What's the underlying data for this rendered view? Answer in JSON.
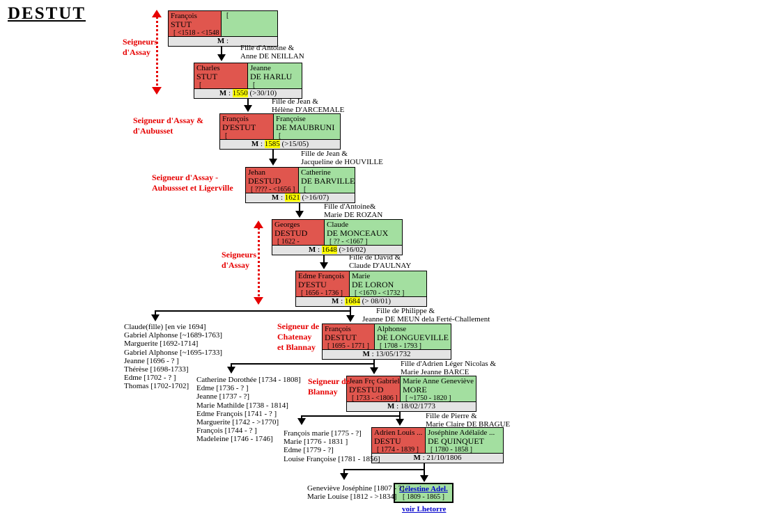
{
  "title": "DESTUT",
  "colors": {
    "husband_cell": "#e0564e",
    "wife_cell": "#a3dfa0",
    "marriage_bar": "#e4e4e4",
    "year_highlight": "#ffff00",
    "seigneury_red": "#e60000",
    "link_blue": "#0000cc",
    "connector_black": "#000000"
  },
  "couples": [
    {
      "husband": {
        "first": "François",
        "last": "STUT",
        "dates": "[ <1518 - <1548 ]"
      },
      "wife": {
        "first": "",
        "last": "",
        "dates": "["
      },
      "marriage": {
        "label": "M",
        "sep": " : ",
        "year": "",
        "rest": ""
      }
    },
    {
      "husband": {
        "first": "Charles",
        "last": "STUT",
        "dates": "["
      },
      "wife": {
        "first": "Jeanne",
        "last": "DE HARLU",
        "dates": "["
      },
      "marriage": {
        "label": "M",
        "sep": " : ",
        "year": "1550",
        "rest": " (>30/10)"
      }
    },
    {
      "husband": {
        "first": "François",
        "last": "D'ESTUT",
        "dates": "["
      },
      "wife": {
        "first": "Françoise",
        "last": "DE MAUBRUNI",
        "dates": "["
      },
      "marriage": {
        "label": "M",
        "sep": " : ",
        "year": "1585",
        "rest": " (>15/05)"
      }
    },
    {
      "husband": {
        "first": "Jehan",
        "last": "DESTUD",
        "dates": "[ ???? - <1656 ]"
      },
      "wife": {
        "first": "Catherine",
        "last": "DE BARVILLE",
        "dates": "["
      },
      "marriage": {
        "label": "M",
        "sep": " : ",
        "year": "1621",
        "rest": " (>16/07)"
      }
    },
    {
      "husband": {
        "first": "Georges",
        "last": "DESTUD",
        "dates": "[ 1622 -"
      },
      "wife": {
        "first": "Claude",
        "last": "DE MONCEAUX",
        "dates": "[ ?? - <1667 ]"
      },
      "marriage": {
        "label": "M",
        "sep": " : ",
        "year": "1648",
        "rest": " (>16/02)"
      }
    },
    {
      "husband": {
        "first": "Edme François",
        "last": "D'ESTU",
        "dates": "[ 1656 - 1736 ]"
      },
      "wife": {
        "first": "Marie",
        "last": "DE LORON",
        "dates": "[ <1670 - <1732 ]"
      },
      "marriage": {
        "label": "M",
        "sep": " : ",
        "year": "1684",
        "rest": " (> 08/01)"
      }
    },
    {
      "husband": {
        "first": "François",
        "last": "DESTUT",
        "dates": "[ 1695 - 1771 ]"
      },
      "wife": {
        "first": "Alphonse",
        "last": "DE LONGUEVILLE",
        "dates": "[ 1708 - 1793 ]"
      },
      "marriage": {
        "label": "M",
        "sep": " : ",
        "year": "",
        "rest": "13/05/1732"
      }
    },
    {
      "husband": {
        "first": "Jean Frç Gabriel",
        "last": "D'ESTUD",
        "dates": "[ 1733 - <1806 ]"
      },
      "wife": {
        "first": "Marie Anne Geneviève",
        "last": "MORE",
        "dates": "[ ~1750 - 1820 ]"
      },
      "marriage": {
        "label": "M",
        "sep": " : ",
        "year": "",
        "rest": "18/02/1773"
      }
    },
    {
      "husband": {
        "first": "Adrien Louis ...",
        "last": "DESTU",
        "dates": "[ 1774 - 1839 ]"
      },
      "wife": {
        "first": "Joséphine Adélaïde ...",
        "last": "DE QUINQUET",
        "dates": "[ 1780 - 1858 ]"
      },
      "marriage": {
        "label": "M",
        "sep": " : ",
        "year": "",
        "rest": "21/10/1806"
      }
    }
  ],
  "seigneury_labels": [
    {
      "lines": [
        "Seigneurs",
        "d'Assay"
      ]
    },
    {
      "lines": [
        "Seigneur d'Assay &",
        "d'Aubusset"
      ]
    },
    {
      "lines": [
        "Seigneur d'Assay -",
        "Aubussset et Ligerville"
      ]
    },
    {
      "lines": [
        "Seigneurs",
        "d'Assay"
      ]
    },
    {
      "lines": [
        "Seigneur de",
        "Chatenay",
        "et Blannay"
      ]
    },
    {
      "lines": [
        "Seigneur de",
        "Blannay"
      ]
    }
  ],
  "parent_annotations": [
    {
      "lines": [
        "Fille d'Antoine &",
        "Anne DE NEILLAN"
      ]
    },
    {
      "lines": [
        "Fille de Jean &",
        "Hélène D'ARCEMALE"
      ]
    },
    {
      "lines": [
        "Fille de Jean &",
        "Jacqueline de HOUVILLE"
      ]
    },
    {
      "lines": [
        "Fille d'Antoine&",
        "Marie DE ROZAN"
      ]
    },
    {
      "lines": [
        "Fille de David &",
        "Claude D'AULNAY"
      ]
    },
    {
      "lines": [
        "Fille de Philippe &",
        "Jeanne DE MEUN dela Ferté-Challement"
      ]
    },
    {
      "lines": [
        "Fille d'Adrien Léger Nicolas &",
        "Marie Jeanne BARCE"
      ]
    },
    {
      "lines": [
        "Fille de Pierre &",
        "Marie Claire DE BRAGUE"
      ]
    }
  ],
  "children_lists": [
    {
      "items": [
        "Claude(fille) [en vie 1694]",
        "Gabriel Alphonse [~1689-1763]",
        "Marguerite [1692-1714]",
        "Gabriel Alphonse [~1695-1733]",
        "Jeanne [1696 - ? ]",
        "Thérèse [1698-1733]",
        "Edme [1702 - ? ]",
        "Thomas [1702-1702]"
      ]
    },
    {
      "items": [
        "Catherine Dorothée [1734 - 1808]",
        "Edme [1736 - ? ]",
        "Jeanne [1737 - ?]",
        "Marie Mathilde [1738 - 1814]",
        "Edme François [1741 - ? ]",
        "Marguerite [1742 - >1770]",
        "François [1744 - ? ]",
        "Madeleine [1746 - 1746]"
      ]
    },
    {
      "items": [
        "François marie [1775 - ?]",
        "Marie [1776 - 1831 ]",
        "Edme [1779 - ?]",
        "Louise Françoise [1781 - 1856]"
      ]
    },
    {
      "items": [
        "Geneviève Joséphine [1807 - ?]",
        "Marie Louise [1812 - >1834]"
      ]
    }
  ],
  "final_person": {
    "name": "Célestine Adel.",
    "dates": "[ 1809 - 1865 ]",
    "link_below": "voir Lhetorre"
  }
}
